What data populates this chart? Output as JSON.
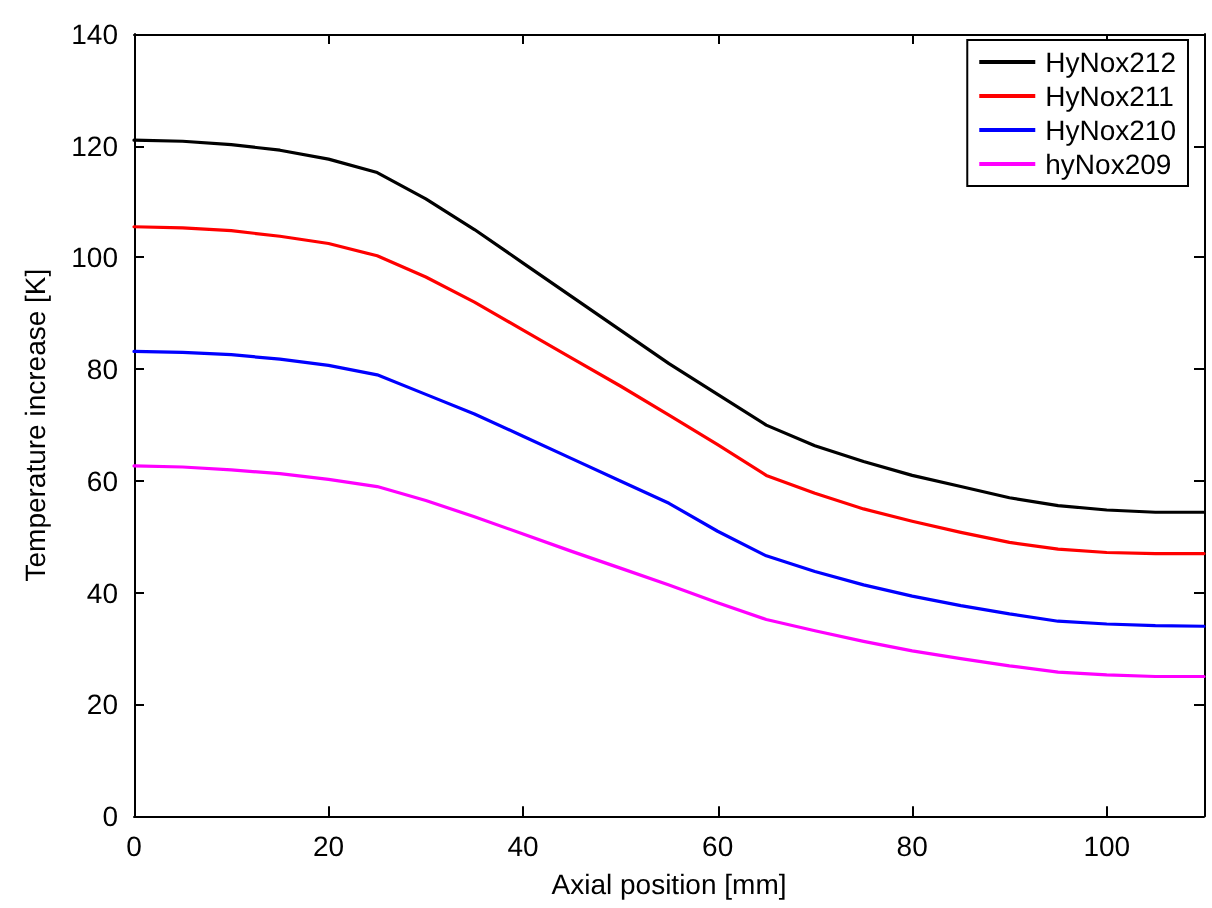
{
  "chart_data": {
    "type": "line",
    "xlabel": "Axial position [mm]",
    "ylabel": "Temperature increase [K]",
    "x": [
      0,
      5,
      10,
      15,
      20,
      25,
      30,
      35,
      40,
      45,
      50,
      55,
      60,
      65,
      70,
      75,
      80,
      85,
      90,
      95,
      100,
      105,
      110
    ],
    "xlim": [
      0,
      110
    ],
    "xticks": [
      0,
      20,
      40,
      60,
      80,
      100
    ],
    "ylim": [
      0,
      140
    ],
    "yticks": [
      0,
      20,
      40,
      60,
      80,
      100,
      120,
      140
    ],
    "grid": false,
    "legend": "top right",
    "marker": "none",
    "line_style": "solid",
    "series": [
      {
        "name": "HyNox212",
        "color": "#000000",
        "values": [
          121,
          120.8,
          120.2,
          119.2,
          117.6,
          115.2,
          110.5,
          105,
          99,
          93,
          87,
          81,
          75.5,
          70,
          66.3,
          63.5,
          61,
          59,
          57,
          55.6,
          54.8,
          54.4,
          54.4
        ]
      },
      {
        "name": "HyNox211",
        "color": "#ff0000",
        "values": [
          105.5,
          105.3,
          104.8,
          103.8,
          102.5,
          100.3,
          96.5,
          92,
          87,
          82,
          77,
          71.8,
          66.5,
          61,
          57.8,
          55,
          52.8,
          50.8,
          49,
          47.8,
          47.2,
          47,
          47
        ]
      },
      {
        "name": "HyNox210",
        "color": "#0000ff",
        "values": [
          83.2,
          83,
          82.6,
          81.8,
          80.7,
          79,
          75.5,
          72,
          68,
          64,
          60,
          56,
          51,
          46.6,
          43.8,
          41.4,
          39.4,
          37.7,
          36.2,
          34.9,
          34.4,
          34.1,
          34
        ]
      },
      {
        "name": "hyNox209",
        "color": "#ff00ff",
        "values": [
          62.7,
          62.5,
          62,
          61.3,
          60.3,
          59,
          56.5,
          53.6,
          50.5,
          47.4,
          44.4,
          41.4,
          38.2,
          35.2,
          33.2,
          31.3,
          29.6,
          28.2,
          26.9,
          25.8,
          25.3,
          25,
          25
        ]
      }
    ]
  }
}
